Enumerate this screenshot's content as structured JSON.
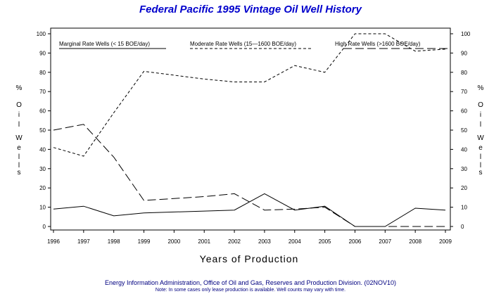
{
  "chart_data": {
    "type": "line",
    "title": "Federal Pacific 1995 Vintage Oil Well History",
    "xlabel": "Years of Production",
    "ylabel_chars": [
      "%",
      "O",
      "i",
      "l",
      "W",
      "e",
      "l",
      "l",
      "s"
    ],
    "x": [
      1996,
      1997,
      1998,
      1999,
      2000,
      2001,
      2002,
      2003,
      2004,
      2005,
      2006,
      2007,
      2008,
      2009
    ],
    "ylim": [
      0,
      100
    ],
    "yticks": [
      0,
      10,
      20,
      30,
      40,
      50,
      60,
      70,
      80,
      90,
      100
    ],
    "grid": false,
    "legend_position": "top-inside",
    "series": [
      {
        "name": "Marginal Rate Wells (<  15 BOE/day)",
        "style": "solid",
        "values": [
          9,
          10.5,
          5.5,
          7,
          7.5,
          8,
          8.5,
          17,
          8.5,
          10.5,
          0,
          0,
          9.5,
          8.5
        ]
      },
      {
        "name": "Moderate Rate Wells (15—1600 BOE/day)",
        "style": "short-dash",
        "values": [
          41,
          36.5,
          59,
          80.5,
          78.5,
          76.5,
          75,
          75,
          83.5,
          80,
          100,
          100,
          91,
          92
        ]
      },
      {
        "name": "High Rate Wells (>1600 BOE/day)",
        "style": "long-dash",
        "values": [
          50,
          53,
          36,
          13.5,
          14.5,
          15.5,
          17,
          8.5,
          9,
          10,
          0,
          0,
          0,
          0
        ]
      }
    ]
  },
  "footer": {
    "source": "Energy Information Administration, Office of Oil and Gas, Reserves and Production Division. (02NOV10)",
    "note": "Note: In some cases only lease production is available. Well counts may vary with time."
  },
  "colors": {
    "title": "#0000cc",
    "footer": "#000080",
    "lines": "#000000"
  }
}
